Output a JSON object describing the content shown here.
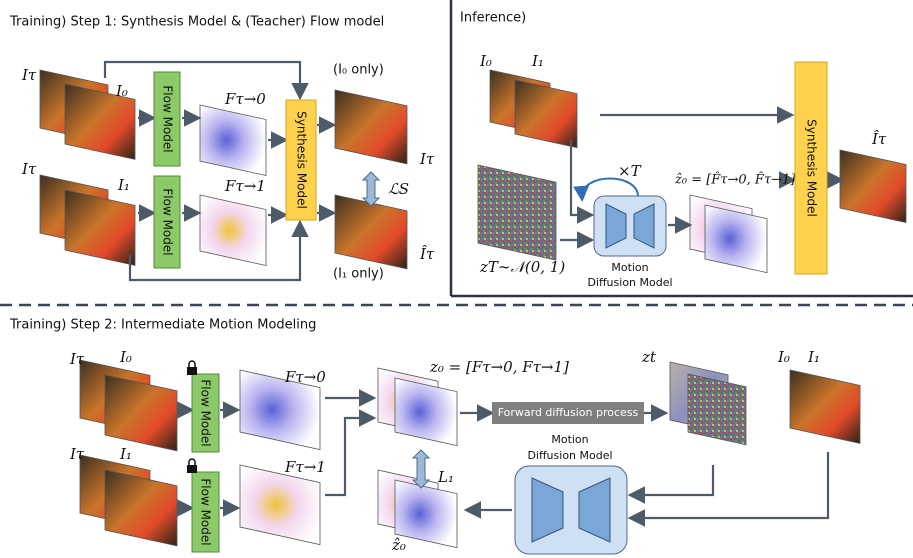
{
  "step1": {
    "title": "Training) Step 1: Synthesis Model & (Teacher) Flow model",
    "flow_model_top": "Flow Model",
    "flow_model_bottom": "Flow Model",
    "synthesis_model": "Synthesis Model",
    "i0_only": "(I₀ only)",
    "i1_only": "(I₁ only)",
    "labels": {
      "i_tau_top": "Iτ",
      "i0": "I₀",
      "i_tau_bottom": "Iτ",
      "i1": "I₁",
      "f_tau_0": "Fτ→0",
      "f_tau_1": "Fτ→1",
      "i_tau_out": "Iτ",
      "i_tau_hat": "Îτ",
      "loss": "ℒS"
    }
  },
  "inference": {
    "title": "Inference)",
    "i0": "I₀",
    "i1": "I₁",
    "times_t": "×T",
    "z0_hat": "ẑ₀ = [F̂τ→0, F̂τ→1]",
    "noise": "zT∼𝒩(0, 1)",
    "model_line1": "Motion",
    "model_line2": "Diffusion Model",
    "synthesis_model": "Synthesis Model",
    "output": "Îτ"
  },
  "step2": {
    "title": "Training) Step 2: Intermediate Motion Modeling",
    "flow_model_top": "Flow Model",
    "flow_model_bottom": "Flow Model",
    "labels": {
      "i_tau_top": "Iτ",
      "i0": "I₀",
      "i_tau_bottom": "Iτ",
      "i1": "I₁",
      "f_tau_0": "Fτ→0",
      "f_tau_1": "Fτ→1",
      "z0": "z₀ = [Fτ→0, Fτ→1]",
      "zt": "zt",
      "i0_right": "I₀",
      "i1_right": "I₁",
      "l1": "L₁",
      "z0_hat": "ẑ₀"
    },
    "forward_process": "Forward diffusion process",
    "model_line1": "Motion",
    "model_line2": "Diffusion Model"
  }
}
